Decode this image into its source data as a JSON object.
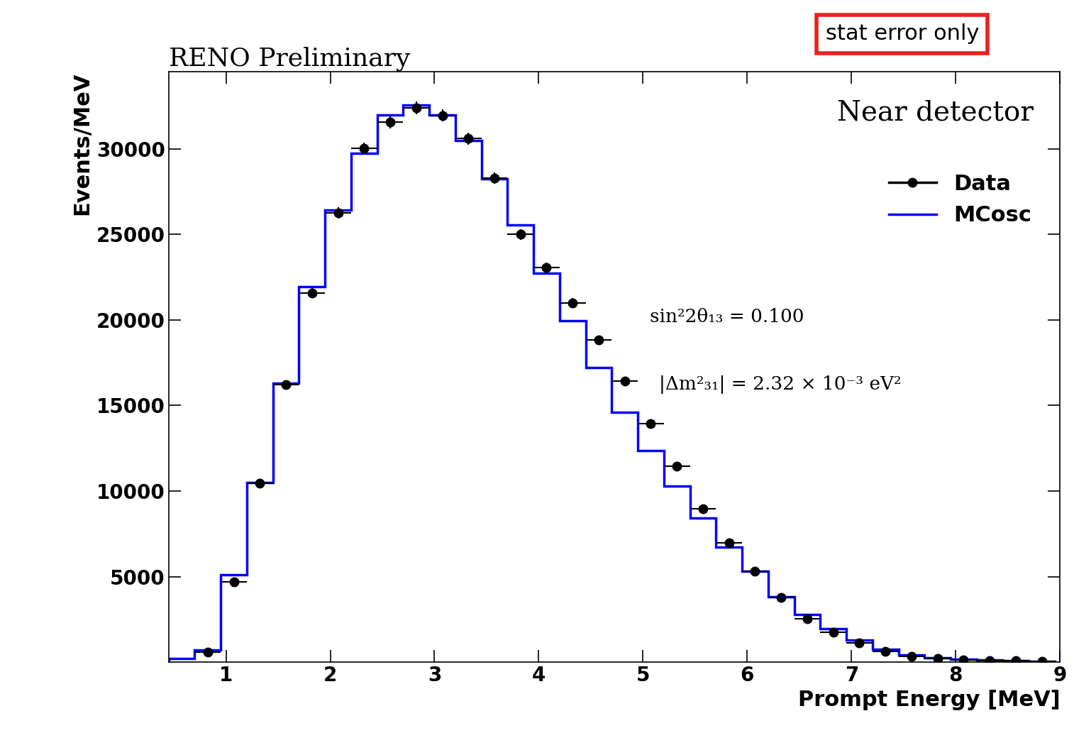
{
  "chart_data": {
    "type": "histogram",
    "title": "RENO Preliminary",
    "x_label": "Prompt Energy [MeV]",
    "y_label": "Events/MeV",
    "annotations": [
      "Near detector",
      "sin²2θ₁₃ = 0.100",
      "|Δm²₃₁| = 2.32 × 10⁻³ eV²",
      "stat error only"
    ],
    "bins": [
      0.45,
      0.7,
      0.95,
      1.2,
      1.45,
      1.7,
      1.95,
      2.2,
      2.45,
      2.7,
      2.95,
      3.2,
      3.45,
      3.7,
      3.95,
      4.2,
      4.45,
      4.7,
      4.95,
      5.2,
      5.45,
      5.7,
      5.95,
      6.2,
      6.45,
      6.7,
      6.95,
      7.2,
      7.45,
      7.7,
      7.95,
      8.2,
      8.45,
      8.7,
      8.95
    ],
    "series": [
      {
        "name": "Data",
        "type": "scatter",
        "color": "#000000",
        "marker": "circle",
        "values": [
          null,
          600,
          4700,
          10460,
          16200,
          21560,
          26240,
          30030,
          31550,
          32390,
          31950,
          30590,
          28270,
          25000,
          23040,
          20970,
          18810,
          16410,
          13940,
          11460,
          8950,
          6990,
          5310,
          3790,
          2520,
          1760,
          1120,
          640,
          320,
          200,
          120,
          80,
          80,
          40
        ],
        "errors": [
          null,
          49,
          137,
          205,
          255,
          294,
          324,
          347,
          355,
          360,
          357,
          350,
          336,
          316,
          304,
          290,
          274,
          256,
          236,
          214,
          189,
          167,
          146,
          123,
          100,
          84,
          67,
          51,
          36,
          28,
          22,
          18,
          18,
          13
        ]
      },
      {
        "name": "MCosc",
        "type": "step",
        "color": "#0000ff",
        "line_style": "solid",
        "values": [
          200,
          720,
          5110,
          10500,
          16290,
          21920,
          26400,
          29750,
          31990,
          32550,
          31990,
          30470,
          28230,
          25560,
          22720,
          19970,
          17210,
          14620,
          12380,
          10300,
          8430,
          6710,
          5310,
          3830,
          2800,
          1960,
          1280,
          760,
          440,
          240,
          160,
          120,
          80,
          60
        ]
      }
    ],
    "xlim": [
      0.45,
      9
    ],
    "ylim": [
      0,
      34500
    ],
    "xticks": [
      1,
      2,
      3,
      4,
      5,
      6,
      7,
      8,
      9
    ],
    "yticks": [
      5000,
      10000,
      15000,
      20000,
      25000,
      30000
    ],
    "grid": false,
    "legend": "upper right"
  }
}
